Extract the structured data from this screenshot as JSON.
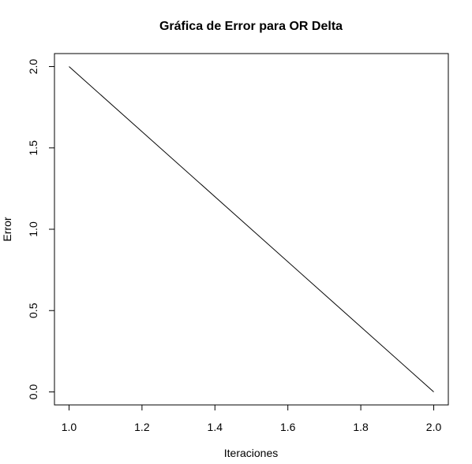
{
  "chart_data": {
    "type": "line",
    "title": "Gráfica de Error para OR Delta",
    "xlabel": "Iteraciones",
    "ylabel": "Error",
    "x": [
      1,
      2
    ],
    "series": [
      {
        "values": [
          2.0,
          0.0
        ],
        "color": "#000000"
      }
    ],
    "xlim": [
      0.96,
      2.04
    ],
    "ylim": [
      -0.08,
      2.08
    ],
    "xticks": [
      1.0,
      1.2,
      1.4,
      1.6,
      1.8,
      2.0
    ],
    "xtick_labels": [
      "1.0",
      "1.2",
      "1.4",
      "1.6",
      "1.8",
      "2.0"
    ],
    "yticks": [
      0.0,
      0.5,
      1.0,
      1.5,
      2.0
    ],
    "ytick_labels": [
      "0.0",
      "0.5",
      "1.0",
      "1.5",
      "2.0"
    ],
    "grid": false,
    "legend": "none"
  }
}
